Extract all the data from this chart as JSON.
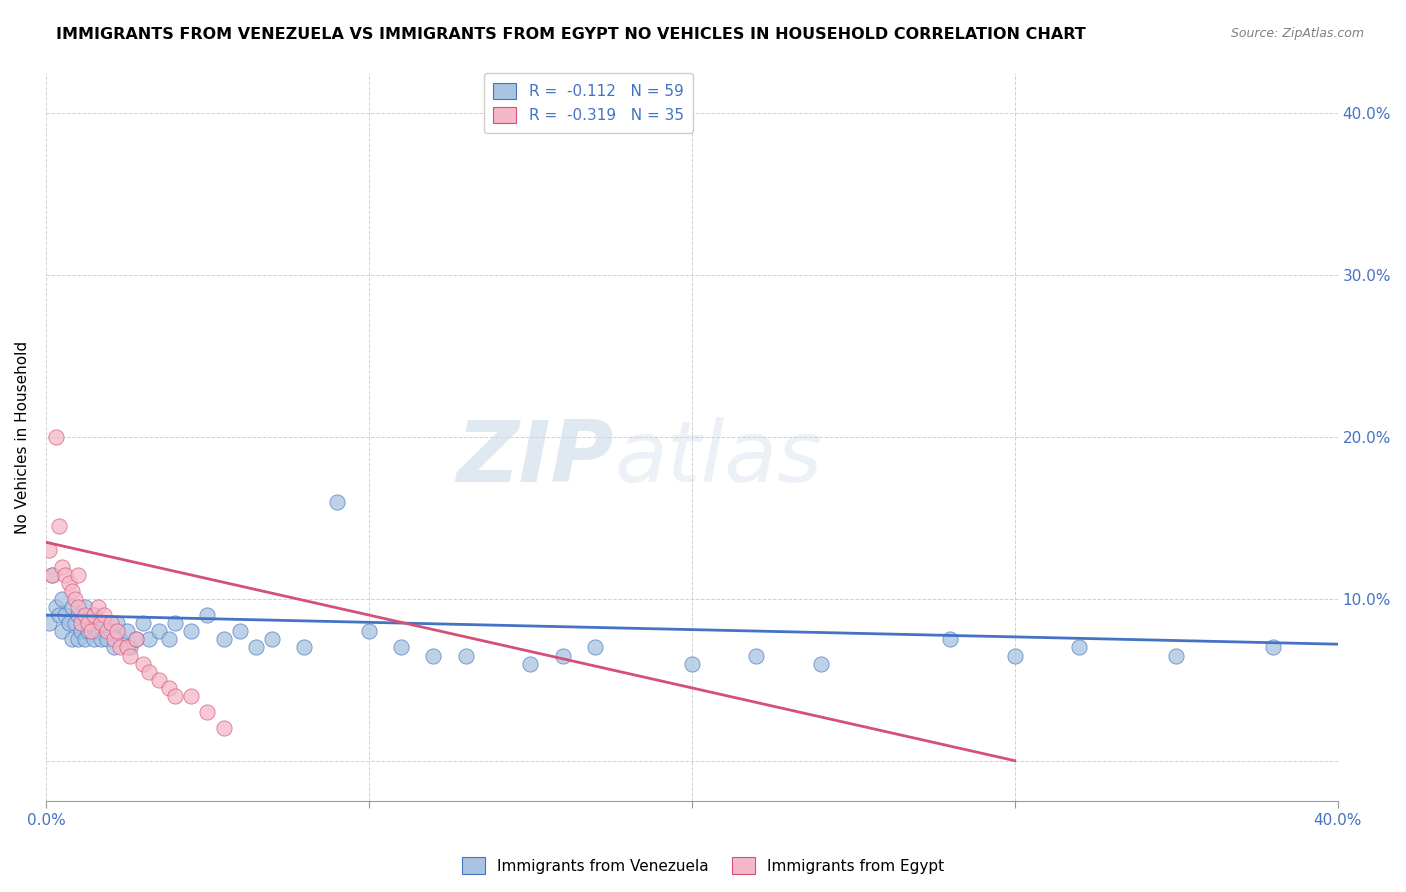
{
  "title": "IMMIGRANTS FROM VENEZUELA VS IMMIGRANTS FROM EGYPT NO VEHICLES IN HOUSEHOLD CORRELATION CHART",
  "source": "Source: ZipAtlas.com",
  "ylabel": "No Vehicles in Household",
  "color_venezuela": "#a8c4e0",
  "color_egypt": "#f4b8c8",
  "line_color_venezuela": "#4472c4",
  "line_color_egypt": "#d4507a",
  "legend_label1": "R =  -0.112   N = 59",
  "legend_label2": "R =  -0.319   N = 35",
  "legend_series1": "Immigrants from Venezuela",
  "legend_series2": "Immigrants from Egypt",
  "xlim": [
    0.0,
    0.4
  ],
  "ylim": [
    -0.025,
    0.425
  ],
  "yticks": [
    0.0,
    0.1,
    0.2,
    0.3,
    0.4
  ],
  "ytick_labels_right": [
    "",
    "10.0%",
    "20.0%",
    "30.0%",
    "40.0%"
  ],
  "xticks": [
    0.0,
    0.1,
    0.2,
    0.3,
    0.4
  ],
  "xtick_labels": [
    "0.0%",
    "",
    "",
    "",
    "40.0%"
  ],
  "venezuela_x": [
    0.001,
    0.002,
    0.003,
    0.004,
    0.005,
    0.005,
    0.006,
    0.007,
    0.008,
    0.008,
    0.009,
    0.01,
    0.01,
    0.011,
    0.012,
    0.012,
    0.013,
    0.014,
    0.015,
    0.015,
    0.016,
    0.017,
    0.018,
    0.019,
    0.02,
    0.021,
    0.022,
    0.023,
    0.025,
    0.026,
    0.028,
    0.03,
    0.032,
    0.035,
    0.038,
    0.04,
    0.045,
    0.05,
    0.055,
    0.06,
    0.065,
    0.07,
    0.08,
    0.09,
    0.1,
    0.11,
    0.12,
    0.13,
    0.15,
    0.16,
    0.17,
    0.2,
    0.22,
    0.24,
    0.28,
    0.3,
    0.32,
    0.35,
    0.38
  ],
  "venezuela_y": [
    0.085,
    0.115,
    0.095,
    0.09,
    0.1,
    0.08,
    0.09,
    0.085,
    0.095,
    0.075,
    0.085,
    0.09,
    0.075,
    0.08,
    0.095,
    0.075,
    0.08,
    0.085,
    0.09,
    0.075,
    0.08,
    0.075,
    0.085,
    0.075,
    0.08,
    0.07,
    0.085,
    0.075,
    0.08,
    0.07,
    0.075,
    0.085,
    0.075,
    0.08,
    0.075,
    0.085,
    0.08,
    0.09,
    0.075,
    0.08,
    0.07,
    0.075,
    0.07,
    0.16,
    0.08,
    0.07,
    0.065,
    0.065,
    0.06,
    0.065,
    0.07,
    0.06,
    0.065,
    0.06,
    0.075,
    0.065,
    0.07,
    0.065,
    0.07
  ],
  "egypt_x": [
    0.001,
    0.002,
    0.003,
    0.004,
    0.005,
    0.006,
    0.007,
    0.008,
    0.009,
    0.01,
    0.01,
    0.011,
    0.012,
    0.013,
    0.014,
    0.015,
    0.016,
    0.017,
    0.018,
    0.019,
    0.02,
    0.021,
    0.022,
    0.023,
    0.025,
    0.026,
    0.028,
    0.03,
    0.032,
    0.035,
    0.038,
    0.04,
    0.045,
    0.05,
    0.055
  ],
  "egypt_y": [
    0.13,
    0.115,
    0.2,
    0.145,
    0.12,
    0.115,
    0.11,
    0.105,
    0.1,
    0.095,
    0.115,
    0.085,
    0.09,
    0.085,
    0.08,
    0.09,
    0.095,
    0.085,
    0.09,
    0.08,
    0.085,
    0.075,
    0.08,
    0.07,
    0.07,
    0.065,
    0.075,
    0.06,
    0.055,
    0.05,
    0.045,
    0.04,
    0.04,
    0.03,
    0.02
  ],
  "venezuela_trendline_x": [
    0.0,
    0.4
  ],
  "venezuela_trendline_y": [
    0.09,
    0.072
  ],
  "egypt_trendline_x": [
    0.0,
    0.3
  ],
  "egypt_trendline_y": [
    0.135,
    0.0
  ]
}
